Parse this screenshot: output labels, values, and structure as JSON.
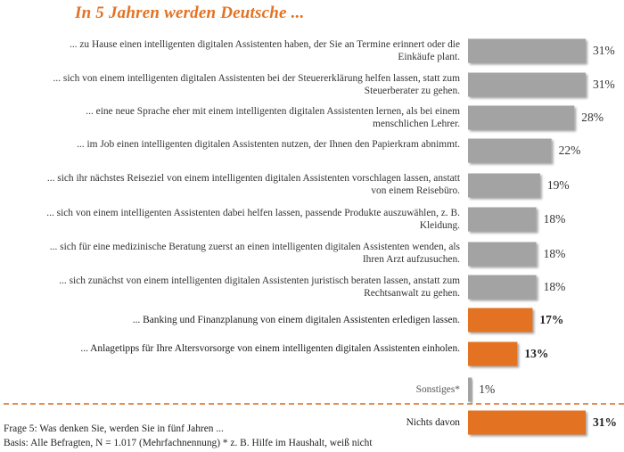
{
  "chart_data": {
    "type": "bar",
    "orientation": "horizontal",
    "title": "In 5 Jahren werden Deutsche ...",
    "categories": [
      "... zu Hause einen intelligenten digitalen Assistenten haben, der Sie an Termine erinnert oder die Einkäufe plant.",
      "... sich von einem intelligenten digitalen Assistenten bei der Steuererklärung helfen lassen, statt zum Steuerberater zu gehen.",
      "... eine neue Sprache eher mit einem intelligenten digitalen Assistenten lernen, als bei einem menschlichen Lehrer.",
      "... im Job einen intelligenten digitalen Assistenten nutzen, der Ihnen den Papierkram abnimmt.",
      "... sich ihr nächstes Reiseziel von einem intelligenten digitalen Assistenten vorschlagen lassen, anstatt von einem Reisebüro.",
      "... sich von einem intelligenten Assistenten dabei helfen lassen, passende Produkte auszuwählen, z. B. Kleidung.",
      "... sich für eine medizinische Beratung zuerst an einen intelligenten digitalen Assistenten wenden, als Ihren Arzt aufzusuchen.",
      "... sich zunächst von einem intelligenten digitalen Assistenten juristisch beraten lassen, anstatt zum Rechtsanwalt zu gehen.",
      "... Banking und Finanzplanung von einem digitalen Assistenten erledigen lassen.",
      "... Anlagetipps für Ihre Altersvorsorge von einem intelligenten digitalen Assistenten einholen.",
      "Sonstiges*",
      "Nichts davon"
    ],
    "values": [
      31,
      31,
      28,
      22,
      19,
      18,
      18,
      18,
      17,
      13,
      1,
      31
    ],
    "value_labels": [
      "31%",
      "31%",
      "28%",
      "22%",
      "19%",
      "18%",
      "18%",
      "18%",
      "17%",
      "13%",
      "1%",
      "31%"
    ],
    "unit": "%",
    "xlim": [
      0,
      31
    ],
    "grid": false,
    "legend": "none",
    "colors": [
      "gray",
      "gray",
      "gray",
      "gray",
      "gray",
      "gray",
      "gray",
      "gray",
      "orange",
      "orange",
      "gray",
      "orange"
    ],
    "palette": {
      "gray": "#a3a3a3",
      "orange": "#e37222",
      "title": "#e37222",
      "divider": "#d9691f"
    }
  },
  "footnotes": {
    "question": "Frage 5: Was denken Sie, werden Sie in fünf Jahren ...",
    "base": "Basis: Alle Befragten, N = 1.017 (Mehrfachnennung) * z. B. Hilfe im Haushalt, weiß nicht"
  }
}
